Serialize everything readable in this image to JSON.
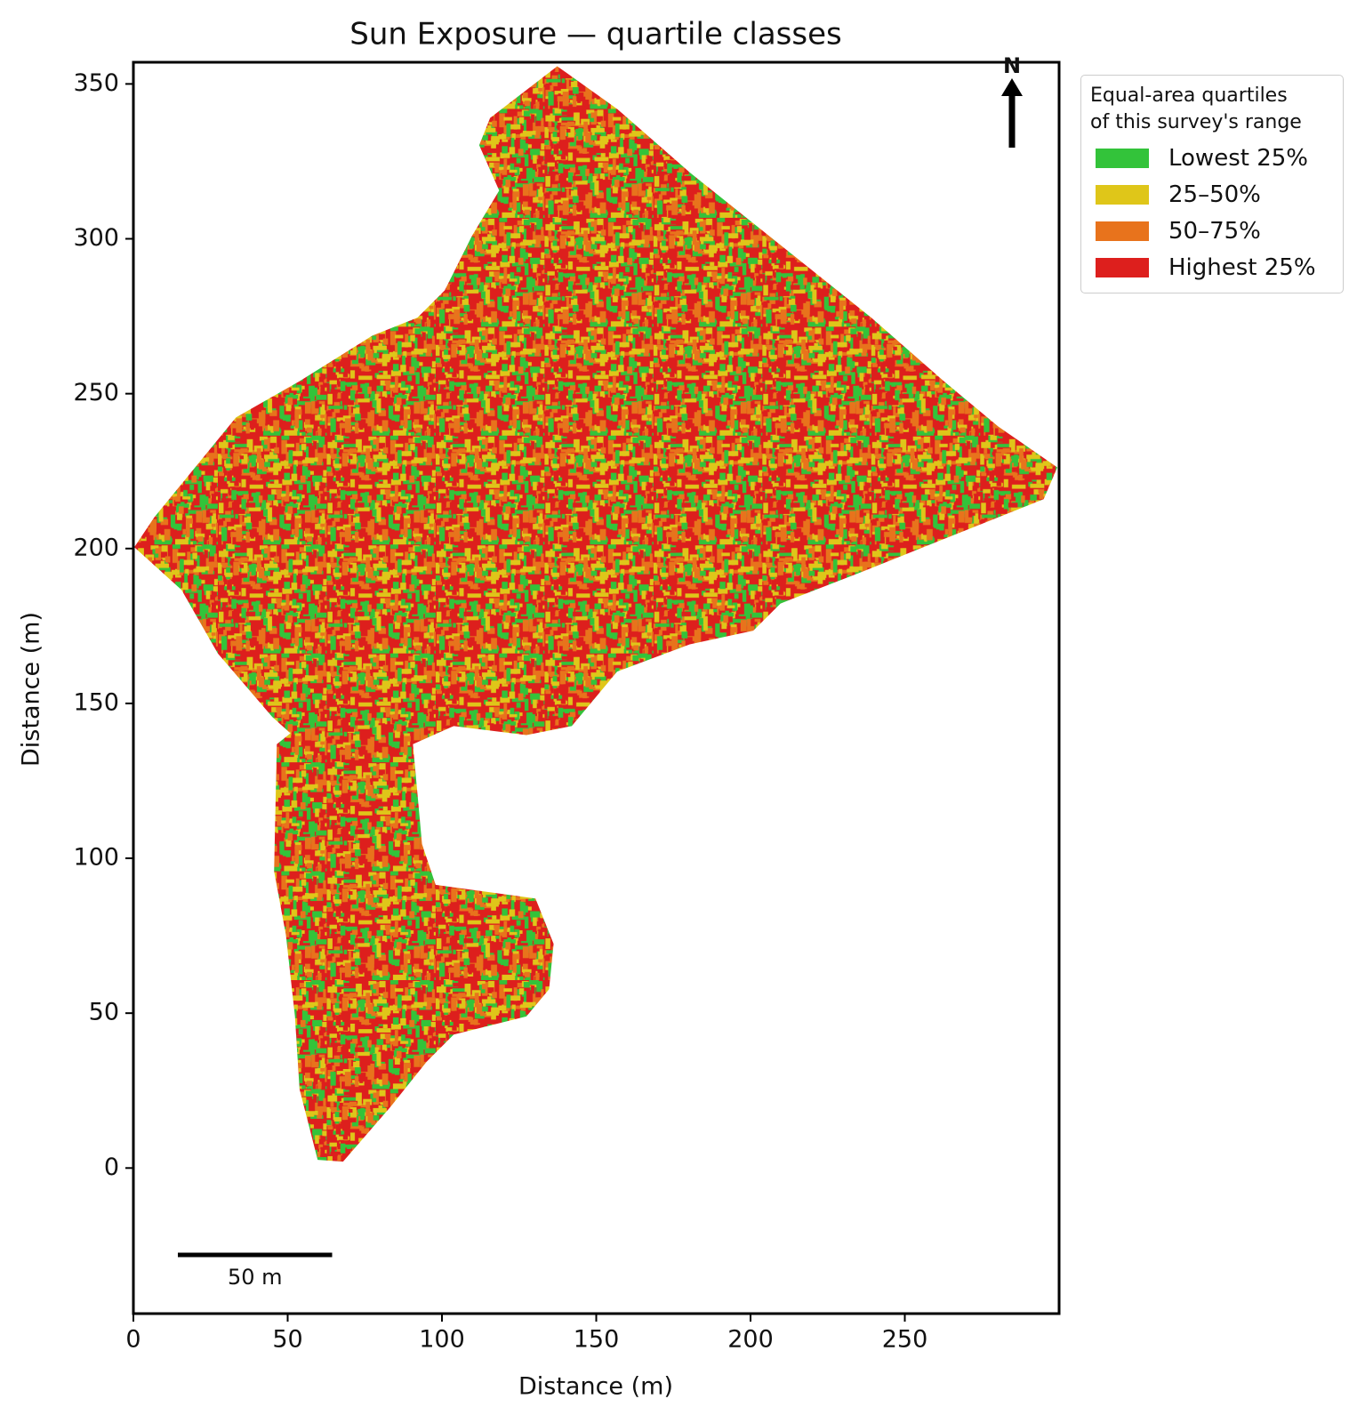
{
  "chart_data": {
    "type": "map",
    "title": "Sun Exposure — quartile classes",
    "x_label": "Distance (m)",
    "y_label": "Distance (m)",
    "xlim": [
      0,
      300
    ],
    "ylim": [
      -47,
      357
    ],
    "xticks": [
      0,
      50,
      100,
      150,
      200,
      250
    ],
    "yticks": [
      0,
      50,
      100,
      150,
      200,
      250,
      300,
      350
    ],
    "legend_title": "Equal-area quartiles\nof this survey's range",
    "legend_position": "outside-right",
    "classes": [
      {
        "name": "Lowest 25%",
        "color": "#33c33a"
      },
      {
        "name": "25–50%",
        "color": "#dfc619"
      },
      {
        "name": "50–75%",
        "color": "#e8731c"
      },
      {
        "name": "Highest 25%",
        "color": "#dd1f1d"
      }
    ],
    "scale_bar": {
      "label": "50 m",
      "length": 50
    },
    "north_arrow": "N"
  }
}
